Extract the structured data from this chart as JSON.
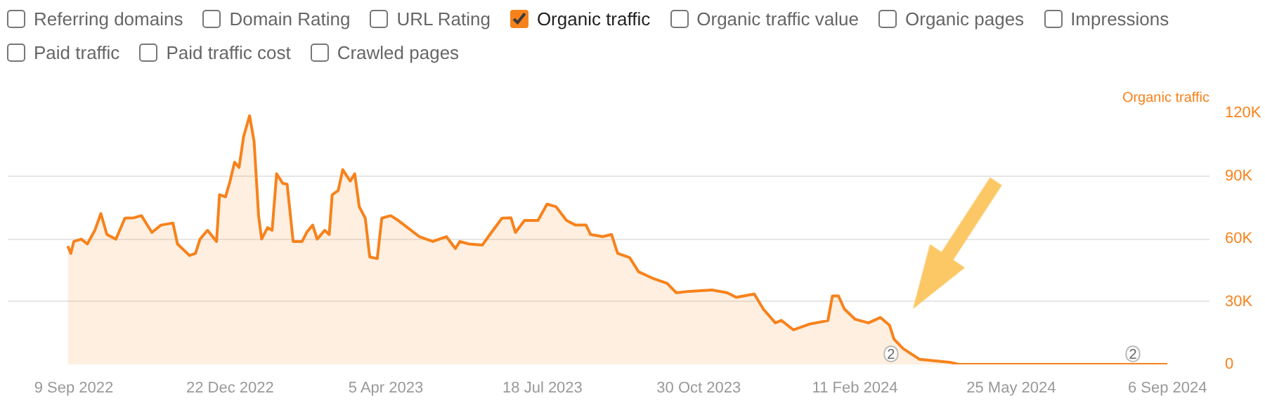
{
  "chart_data": {
    "type": "area",
    "ylabel": "Organic traffic",
    "annotations": [
      "Referring domains",
      "Domain Rating",
      "URL Rating",
      "Organic traffic value",
      "Organic pages",
      "Impressions",
      "Paid traffic",
      "Paid traffic cost",
      "Crawled pages",
      {
        "text": "2",
        "x": "2024-03-06",
        "y": 0
      },
      {
        "text": "2",
        "x": "2024-08-14",
        "y": 0
      }
    ],
    "x": [
      "2022-09-05",
      "2022-09-07",
      "2022-09-09",
      "2022-09-14",
      "2022-09-18",
      "2022-09-23",
      "2022-09-27",
      "2022-10-01",
      "2022-10-07",
      "2022-10-13",
      "2022-10-19",
      "2022-10-24",
      "2022-10-31",
      "2022-11-06",
      "2022-11-14",
      "2022-11-17",
      "2022-11-25",
      "2022-11-29",
      "2022-12-02",
      "2022-12-07",
      "2022-12-13",
      "2022-12-15",
      "2022-12-19",
      "2022-12-22",
      "2022-12-25",
      "2022-12-28",
      "2022-12-31",
      "2023-01-04",
      "2023-01-07",
      "2023-01-10",
      "2023-01-12",
      "2023-01-16",
      "2023-01-19",
      "2023-01-22",
      "2023-01-26",
      "2023-01-29",
      "2023-02-02",
      "2023-02-08",
      "2023-02-11",
      "2023-02-15",
      "2023-02-18",
      "2023-02-23",
      "2023-02-26",
      "2023-02-28",
      "2023-03-04",
      "2023-03-07",
      "2023-03-12",
      "2023-03-15",
      "2023-03-18",
      "2023-03-22",
      "2023-03-25",
      "2023-03-30",
      "2023-04-02",
      "2023-04-08",
      "2023-04-13",
      "2023-04-17",
      "2023-04-27",
      "2023-05-06",
      "2023-05-15",
      "2023-05-21",
      "2023-05-24",
      "2023-05-30",
      "2023-06-08",
      "2023-06-13",
      "2023-06-21",
      "2023-06-27",
      "2023-06-30",
      "2023-07-06",
      "2023-07-15",
      "2023-07-21",
      "2023-07-27",
      "2023-08-03",
      "2023-08-09",
      "2023-08-16",
      "2023-08-19",
      "2023-08-27",
      "2023-09-02",
      "2023-09-06",
      "2023-09-14",
      "2023-09-20",
      "2023-09-30",
      "2023-10-09",
      "2023-10-15",
      "2023-10-24",
      "2023-11-02",
      "2023-11-08",
      "2023-11-18",
      "2023-11-24",
      "2023-12-06",
      "2023-12-12",
      "2023-12-20",
      "2023-12-24",
      "2024-01-01",
      "2024-01-12",
      "2024-01-24",
      "2024-01-27",
      "2024-01-31",
      "2024-02-04",
      "2024-02-11",
      "2024-02-20",
      "2024-02-28",
      "2024-03-05",
      "2024-03-08",
      "2024-03-14",
      "2024-03-25",
      "2024-04-15",
      "2024-04-20",
      "2024-09-06"
    ],
    "series": [
      {
        "name": "Organic traffic",
        "color": "#f7821b",
        "values": [
          56500,
          53000,
          58700,
          59800,
          57500,
          64000,
          72000,
          62000,
          59800,
          69800,
          70000,
          71000,
          63000,
          66500,
          67500,
          57500,
          52000,
          53000,
          59800,
          64000,
          58700,
          81000,
          80000,
          87500,
          96500,
          94000,
          108700,
          118700,
          106500,
          71000,
          59800,
          65300,
          64000,
          91000,
          86500,
          86000,
          58700,
          58700,
          63000,
          66500,
          59800,
          64000,
          62000,
          81000,
          83000,
          93000,
          87500,
          91000,
          75300,
          69800,
          51300,
          50500,
          69800,
          71000,
          68700,
          66500,
          61000,
          58700,
          61000,
          55300,
          58700,
          57500,
          57000,
          62000,
          69800,
          70000,
          63000,
          68700,
          68700,
          76500,
          75300,
          68700,
          66500,
          66500,
          62000,
          61000,
          62000,
          53000,
          51000,
          44200,
          40900,
          38700,
          34200,
          34900,
          35300,
          35500,
          34200,
          32000,
          33600,
          26400,
          19800,
          21000,
          16500,
          19300,
          20900,
          32700,
          32700,
          26400,
          21600,
          19800,
          22400,
          18700,
          12000,
          7600,
          2400,
          900,
          0,
          0
        ]
      }
    ],
    "xlim": [
      "2022-07-27",
      "2024-10-04"
    ],
    "xticks": [
      {
        "value": "2022-09-09",
        "label": "9 Sep 2022"
      },
      {
        "value": "2022-12-22",
        "label": "22 Dec 2022"
      },
      {
        "value": "2023-04-05",
        "label": "5 Apr 2023"
      },
      {
        "value": "2023-07-18",
        "label": "18 Jul 2023"
      },
      {
        "value": "2023-10-30",
        "label": "30 Oct 2023"
      },
      {
        "value": "2024-02-11",
        "label": "11 Feb 2024"
      },
      {
        "value": "2024-05-25",
        "label": "25 May 2024"
      },
      {
        "value": "2024-09-06",
        "label": "6 Sep 2024"
      }
    ],
    "ylim": [
      0,
      120000
    ],
    "yticks": [
      0,
      {
        "value": 30000,
        "label": "30K"
      },
      {
        "value": 60000,
        "label": "60K"
      },
      {
        "value": 90000,
        "label": "90K"
      },
      {
        "value": 120000,
        "label": "120K"
      }
    ],
    "grid": "y",
    "legend": "top left",
    "line_style": "solid"
  }
}
